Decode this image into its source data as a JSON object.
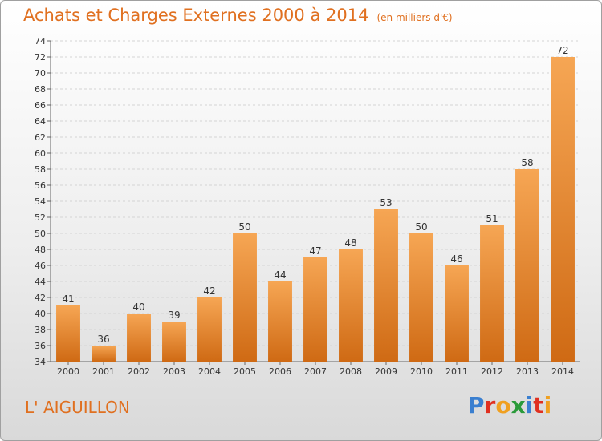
{
  "title": "Achats et Charges Externes 2000 à 2014",
  "subtitle": "(en milliers d'€)",
  "place": "L' AIGUILLON",
  "logo": {
    "text": "Proxiti",
    "letters": [
      {
        "ch": "P",
        "color": "#3a7fd0"
      },
      {
        "ch": "r",
        "color": "#e03020"
      },
      {
        "ch": "o",
        "color": "#f0a020"
      },
      {
        "ch": "x",
        "color": "#2a9a3a"
      },
      {
        "ch": "i",
        "color": "#3a7fd0"
      },
      {
        "ch": "t",
        "color": "#e03020"
      },
      {
        "ch": "i",
        "color": "#f0a020"
      }
    ]
  },
  "colors": {
    "accent": "#e07020",
    "bar_light": "#f6a654",
    "bar_dark": "#cf6a14"
  },
  "chart_data": {
    "type": "bar",
    "categories": [
      "2000",
      "2001",
      "2002",
      "2003",
      "2004",
      "2005",
      "2006",
      "2007",
      "2008",
      "2009",
      "2010",
      "2011",
      "2012",
      "2013",
      "2014"
    ],
    "values": [
      41,
      36,
      40,
      39,
      42,
      50,
      44,
      47,
      48,
      53,
      50,
      46,
      51,
      58,
      72
    ],
    "ylim": [
      34,
      74
    ],
    "ytick_step": 2,
    "grid": true
  }
}
